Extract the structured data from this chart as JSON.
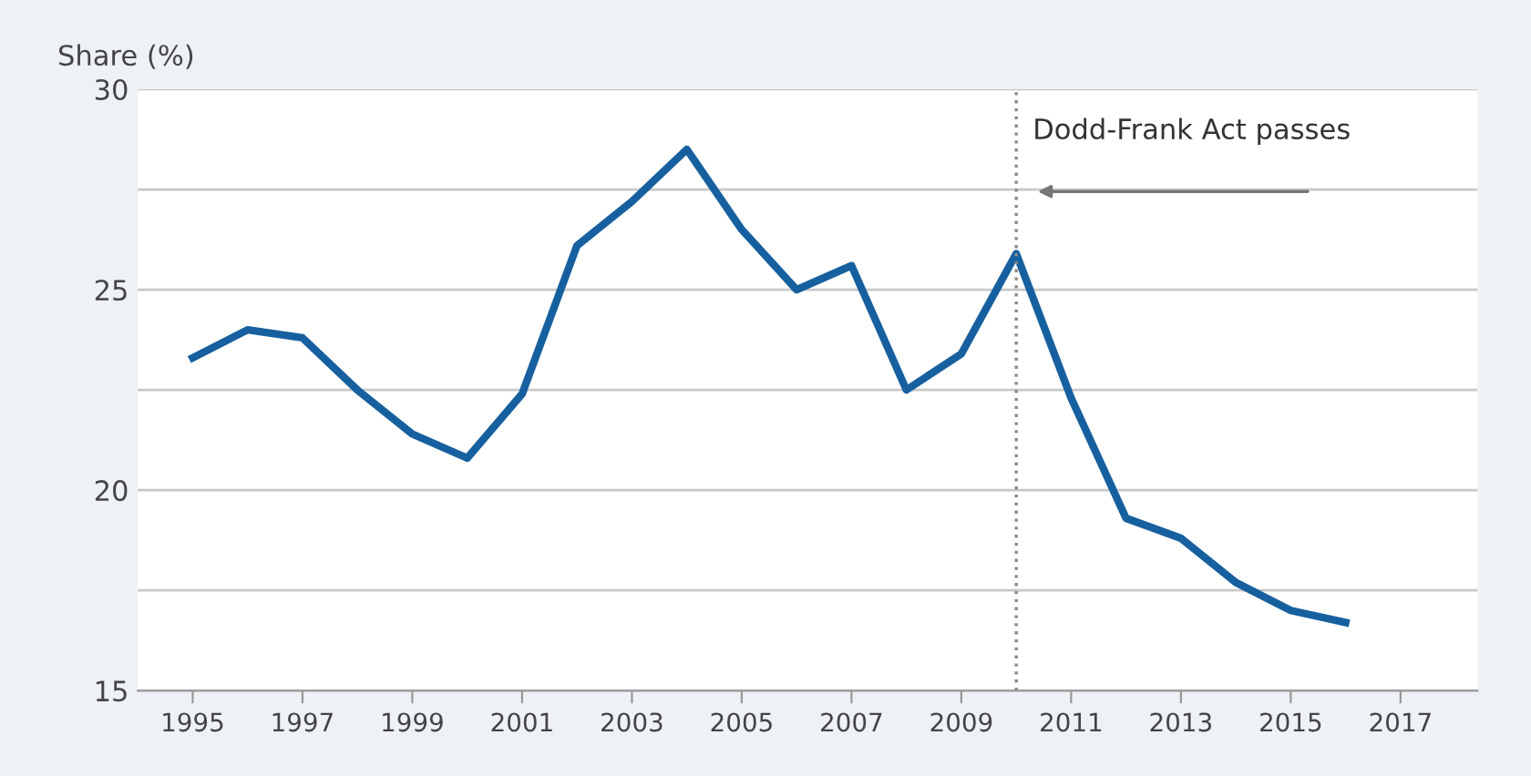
{
  "chart_data": {
    "type": "line",
    "ylabel": "Share (%)",
    "x": [
      1995,
      1996,
      1997,
      1998,
      1999,
      2000,
      2001,
      2002,
      2003,
      2004,
      2005,
      2006,
      2007,
      2008,
      2009,
      2010,
      2011,
      2012,
      2013,
      2014,
      2015,
      2016
    ],
    "series": [
      {
        "color": "#17609f",
        "values": [
          23.3,
          24.0,
          23.8,
          22.5,
          21.4,
          20.8,
          22.4,
          26.1,
          27.2,
          28.5,
          26.5,
          25.0,
          25.6,
          22.5,
          23.4,
          25.9,
          22.3,
          19.3,
          18.8,
          17.7,
          17.0,
          16.7
        ]
      }
    ],
    "xlim": [
      1994,
      2018.4
    ],
    "xticks": [
      1995,
      1997,
      1999,
      2001,
      2003,
      2005,
      2007,
      2009,
      2011,
      2013,
      2015,
      2017
    ],
    "ylim": [
      15,
      30
    ],
    "yticks": [
      15,
      {
        "value": 17.5,
        "label": null
      },
      20,
      {
        "value": 22.5,
        "label": null
      },
      25,
      {
        "value": 27.5,
        "label": null
      },
      30
    ],
    "grid": "y",
    "marker": "none",
    "line_style": "solid",
    "ref_lines": [
      {
        "axis": "x",
        "value": 2010,
        "label": "Dodd-Frank Act passes",
        "color": "#888888",
        "line_style": "dotted"
      }
    ]
  }
}
